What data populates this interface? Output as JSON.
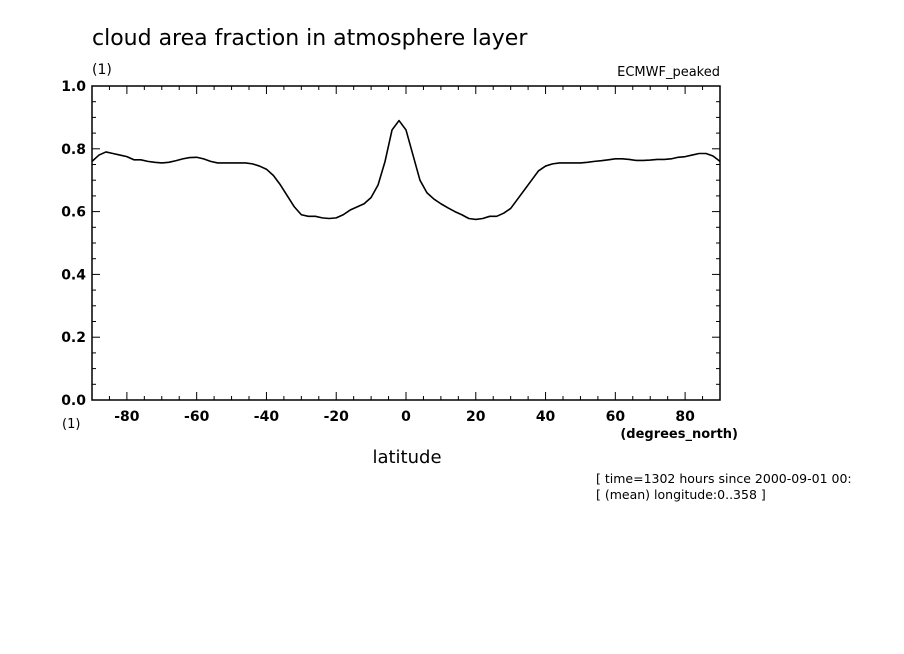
{
  "chart_data": {
    "type": "line",
    "title": "cloud area fraction in atmosphere layer",
    "y_units": "(1)",
    "x_units_corner": "(1)",
    "dataset_label": "ECMWF_peaked",
    "xlabel": "latitude",
    "xunits": "(degrees_north)",
    "xlim": [
      -90,
      90
    ],
    "ylim": [
      0,
      1
    ],
    "xticks": [
      -80,
      -60,
      -40,
      -20,
      0,
      20,
      40,
      60,
      80
    ],
    "xtick_labels": [
      "-80",
      "-60",
      "-40",
      "-20",
      "0",
      "20",
      "40",
      "60",
      "80"
    ],
    "yticks": [
      0,
      0.2,
      0.4,
      0.6,
      0.8,
      1.0
    ],
    "ytick_labels": [
      "0.0",
      "0.2",
      "0.4",
      "0.6",
      "0.8",
      "1.0"
    ],
    "grid": false,
    "series": [
      {
        "x": [
          -90,
          -88,
          -86,
          -84,
          -82,
          -80,
          -78,
          -76,
          -74,
          -72,
          -70,
          -68,
          -66,
          -64,
          -62,
          -60,
          -58,
          -56,
          -54,
          -52,
          -50,
          -48,
          -46,
          -44,
          -42,
          -40,
          -38,
          -36,
          -34,
          -32,
          -30,
          -28,
          -26,
          -24,
          -22,
          -20,
          -18,
          -16,
          -14,
          -12,
          -10,
          -8,
          -6,
          -4,
          -2,
          0,
          2,
          4,
          6,
          8,
          10,
          12,
          14,
          16,
          18,
          20,
          22,
          24,
          26,
          28,
          30,
          32,
          34,
          36,
          38,
          40,
          42,
          44,
          46,
          48,
          50,
          52,
          54,
          56,
          58,
          60,
          62,
          64,
          66,
          68,
          70,
          72,
          74,
          76,
          78,
          80,
          82,
          84,
          86,
          88,
          90
        ],
        "y": [
          0.76,
          0.78,
          0.79,
          0.785,
          0.78,
          0.775,
          0.765,
          0.765,
          0.76,
          0.757,
          0.755,
          0.757,
          0.762,
          0.768,
          0.772,
          0.773,
          0.768,
          0.76,
          0.755,
          0.755,
          0.755,
          0.755,
          0.755,
          0.752,
          0.745,
          0.735,
          0.715,
          0.685,
          0.65,
          0.615,
          0.59,
          0.585,
          0.585,
          0.58,
          0.578,
          0.58,
          0.59,
          0.605,
          0.615,
          0.625,
          0.645,
          0.685,
          0.76,
          0.86,
          0.89,
          0.86,
          0.78,
          0.7,
          0.66,
          0.64,
          0.625,
          0.612,
          0.6,
          0.59,
          0.578,
          0.575,
          0.578,
          0.585,
          0.585,
          0.595,
          0.61,
          0.64,
          0.67,
          0.7,
          0.73,
          0.745,
          0.752,
          0.755,
          0.755,
          0.755,
          0.755,
          0.757,
          0.76,
          0.762,
          0.765,
          0.768,
          0.768,
          0.766,
          0.763,
          0.763,
          0.764,
          0.766,
          0.766,
          0.768,
          0.773,
          0.775,
          0.78,
          0.785,
          0.785,
          0.777,
          0.76
        ]
      }
    ],
    "annotations": [
      "[ time=1302 hours since 2000-09-01 00:",
      "[ (mean) longitude:0..358 ]"
    ]
  }
}
